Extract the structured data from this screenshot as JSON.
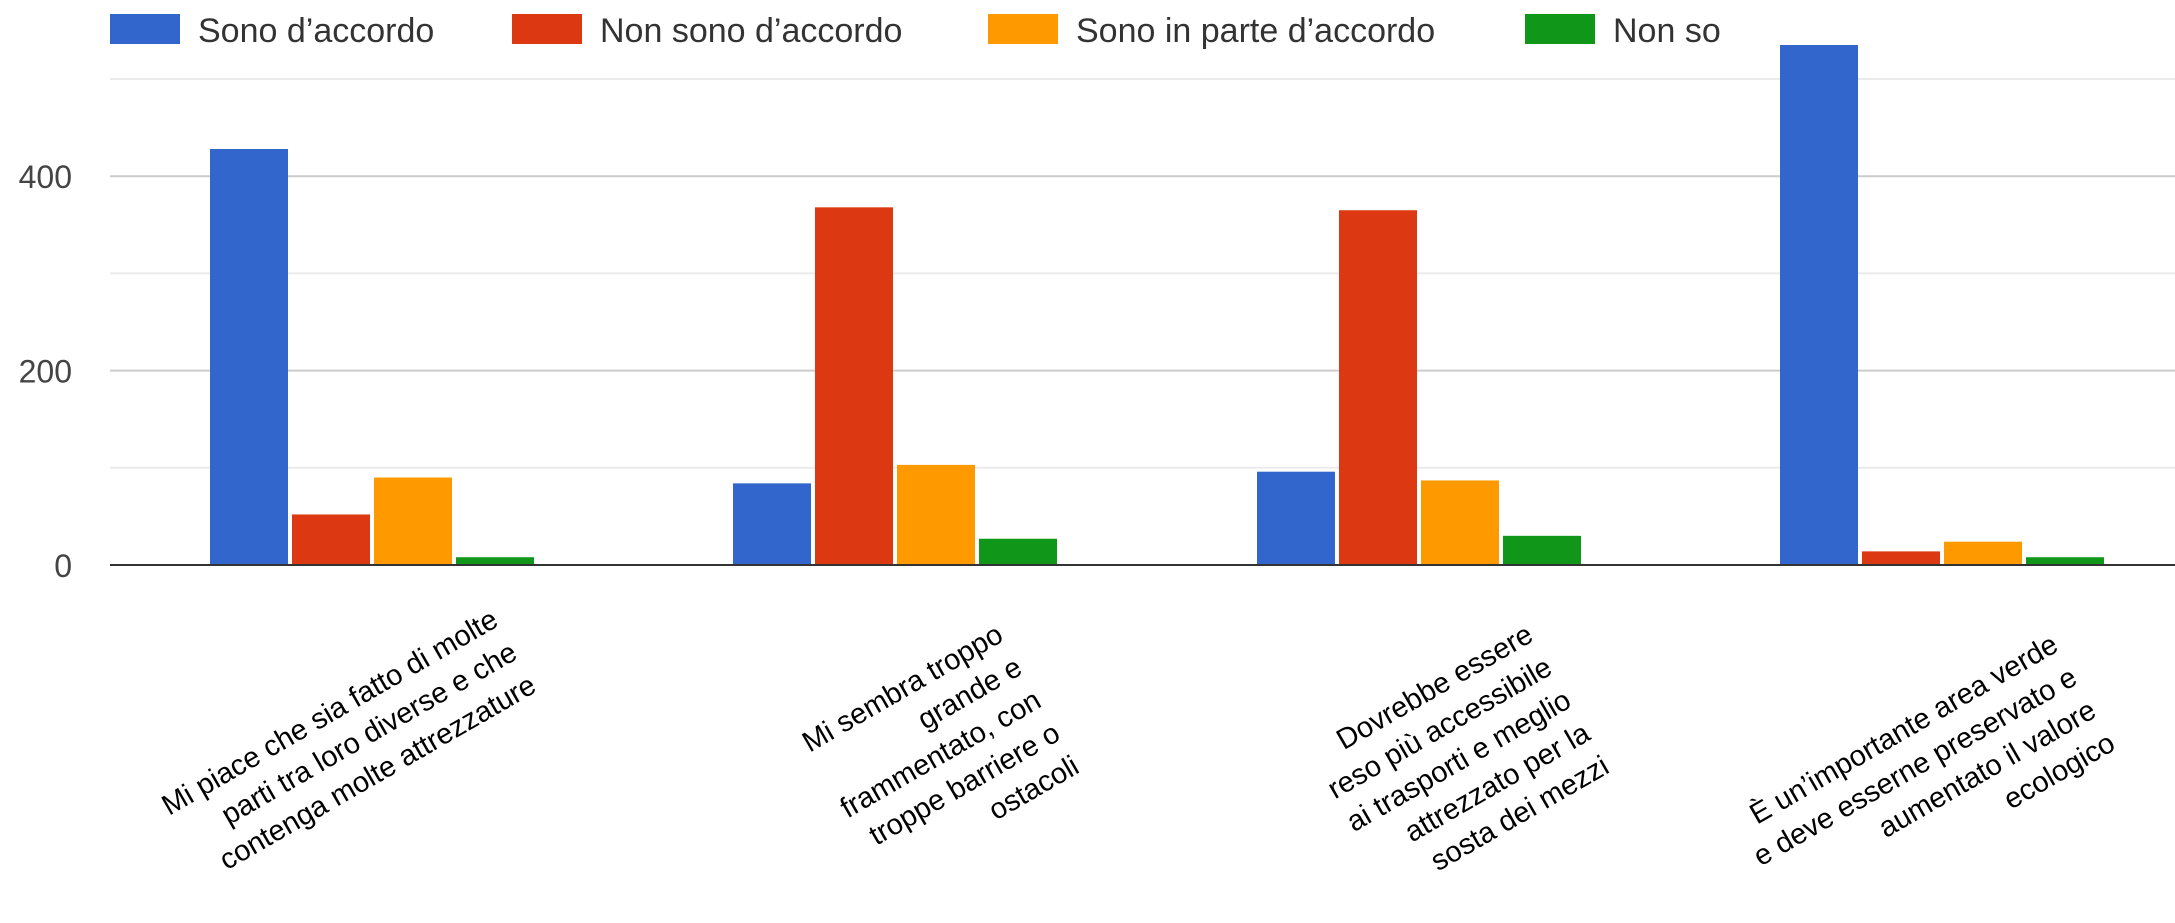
{
  "chart_data": {
    "type": "bar",
    "categories": [
      [
        "Mi piace che sia fatto di molte",
        "parti tra loro diverse e che",
        "contenga molte attrezzature"
      ],
      [
        "Mi sembra troppo",
        "grande e",
        "frammentato, con",
        "troppe barriere o",
        "ostacoli"
      ],
      [
        "Dovrebbe essere",
        "reso più accessibile",
        "ai trasporti e meglio",
        "attrezzato per la",
        "sosta dei mezzi"
      ],
      [
        "È un’importante area verde",
        "e deve esserne preservato e",
        "aumentato il valore",
        "ecologico"
      ]
    ],
    "series": [
      {
        "name": "Sono d’accordo",
        "color": "#3366cc",
        "values": [
          428,
          84,
          96,
          535
        ]
      },
      {
        "name": "Non sono d’accordo",
        "color": "#dc3912",
        "values": [
          52,
          368,
          365,
          14
        ]
      },
      {
        "name": "Sono in parte d’accordo",
        "color": "#ff9900",
        "values": [
          90,
          103,
          87,
          24
        ]
      },
      {
        "name": "Non so",
        "color": "#109618",
        "values": [
          8,
          27,
          30,
          8
        ]
      }
    ],
    "yticks": [
      0,
      200,
      400
    ],
    "ylim": [
      0,
      535
    ],
    "minor_gridlines": [
      100,
      300,
      500
    ],
    "legend_position": "top",
    "grid": true
  }
}
